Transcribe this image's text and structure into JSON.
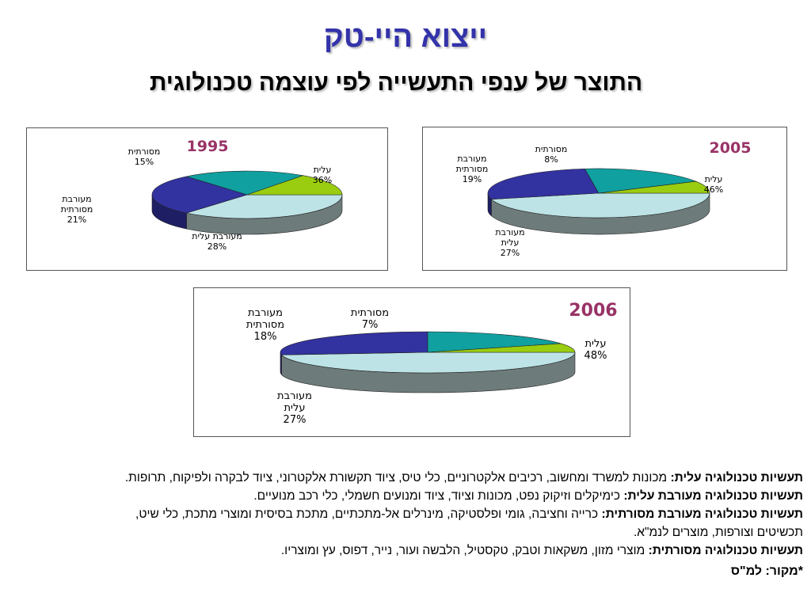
{
  "title": "ייצוא היי-טק",
  "subtitle": "התוצר של ענפי התעשייה לפי עוצמה טכנולוגית",
  "chart_data": [
    {
      "type": "pie",
      "title": "1995",
      "slices": [
        {
          "label": "עלית",
          "value": 36,
          "color": "#bde3e6",
          "side": "#6e7b7b"
        },
        {
          "label": "מעורבת עלית",
          "value": 28,
          "color": "#3232a0",
          "side": "#1e1e64"
        },
        {
          "label": "מעורבת מסורתית",
          "value": 21,
          "color": "#10a0a0",
          "side": "#0b5f5f"
        },
        {
          "label": "מסורתית",
          "value": 15,
          "color": "#9acd0f",
          "side": "#6b8f0a"
        }
      ],
      "percent_labels": [
        "36%",
        "28%",
        "21%",
        "15%"
      ]
    },
    {
      "type": "pie",
      "title": "2005",
      "slices": [
        {
          "label": "עלית",
          "value": 46,
          "color": "#bde3e6",
          "side": "#6e7b7b"
        },
        {
          "label": "מעורבת עלית",
          "value": 27,
          "color": "#3232a0",
          "side": "#1e1e64"
        },
        {
          "label": "מעורבת מסורתית",
          "value": 19,
          "color": "#10a0a0",
          "side": "#0b5f5f"
        },
        {
          "label": "מסורתית",
          "value": 8,
          "color": "#9acd0f",
          "side": "#6b8f0a"
        }
      ],
      "percent_labels": [
        "46%",
        "27%",
        "19%",
        "8%"
      ]
    },
    {
      "type": "pie",
      "title": "2006",
      "slices": [
        {
          "label": "עלית",
          "value": 48,
          "color": "#bde3e6",
          "side": "#6e7b7b"
        },
        {
          "label": "מעורבת עלית",
          "value": 27,
          "color": "#3232a0",
          "side": "#1e1e64"
        },
        {
          "label": "מעורבת מסורתית",
          "value": 18,
          "color": "#10a0a0",
          "side": "#0b5f5f"
        },
        {
          "label": "מסורתית",
          "value": 7,
          "color": "#9acd0f",
          "side": "#6b8f0a"
        }
      ],
      "percent_labels": [
        "48%",
        "27%",
        "18%",
        "7%"
      ]
    }
  ],
  "colors": {
    "title": "#3333aa",
    "year": "#993366"
  },
  "notes": {
    "high_label": "תעשיות טכנולוגיה עלית:",
    "high_text": "מכונות למשרד ומחשוב, רכיבים אלקטרוניים, כלי טיס, ציוד תקשורת אלקטרוני, ציוד לבקרה ולפיקוח, תרופות.",
    "medhigh_label": "תעשיות טכנולוגיה מעורבת עלית:",
    "medhigh_text": "כימיקלים וזיקוק נפט, מכונות וציוד, ציוד ומנועים חשמלי, כלי רכב מנועיים.",
    "medlow_label": "תעשיות טכנולוגיה מעורבת מסורתית:",
    "medlow_text": "כרייה וחציבה, גומי ופלסטיקה, מינרלים אל-מתכתיים, מתכת בסיסית ומוצרי מתכת, כלי שיט, תכשיטים וצורפות, מוצרים לנמ\"א.",
    "low_label": "תעשיות טכנולוגיה מסורתית:",
    "low_text": "מוצרי מזון, משקאות וטבק, טקסטיל, הלבשה ועור, נייר, דפוס, עץ ומוצריו.",
    "source": "*מקור: למ\"ס"
  }
}
